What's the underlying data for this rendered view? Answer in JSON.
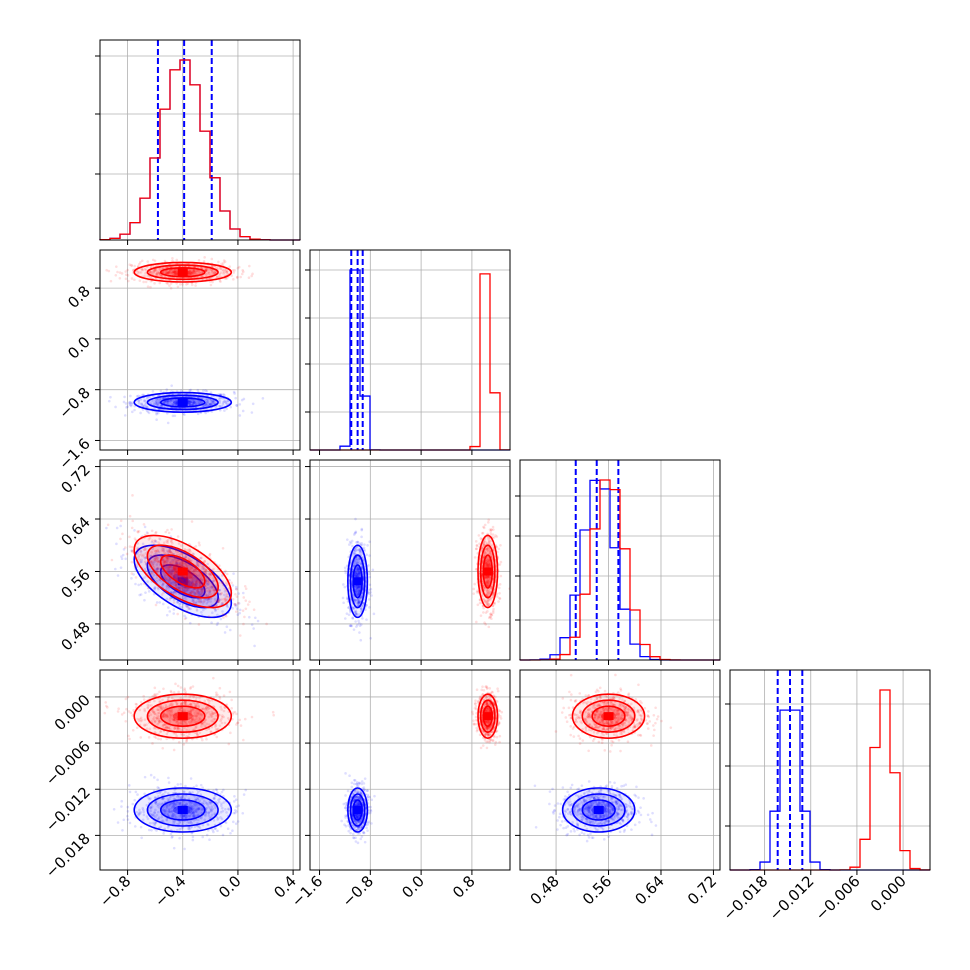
{
  "chart_data": {
    "type": "corner",
    "colors": {
      "blue": "#0000ff",
      "red": "#ff0000",
      "grid": "#b0b0b0"
    },
    "parameters": [
      {
        "index": 0,
        "range": [
          -1.0,
          0.45
        ],
        "ticks": [
          "−0.8",
          "−0.4",
          "0.0",
          "0.4"
        ],
        "tick_values": [
          -0.8,
          -0.4,
          0.0,
          0.4
        ]
      },
      {
        "index": 1,
        "range": [
          -1.75,
          1.4
        ],
        "ticks": [
          "−1.6",
          "−0.8",
          "0.0",
          "0.8"
        ],
        "tick_values": [
          -1.6,
          -0.8,
          0.0,
          0.8
        ]
      },
      {
        "index": 2,
        "range": [
          0.425,
          0.73
        ],
        "ticks": [
          "0.48",
          "0.56",
          "0.64",
          "0.72"
        ],
        "tick_values": [
          0.48,
          0.56,
          0.64,
          0.72
        ]
      },
      {
        "index": 3,
        "range": [
          -0.0225,
          0.0035
        ],
        "ticks": [
          "−0.018",
          "−0.012",
          "−0.006",
          "0.000"
        ],
        "tick_values": [
          -0.018,
          -0.012,
          -0.006,
          0.0
        ]
      }
    ],
    "series": [
      {
        "color": "blue",
        "means": [
          -0.4,
          -1.0,
          0.545,
          -0.0147
        ],
        "stds": [
          0.16,
          0.07,
          0.025,
          0.0013
        ],
        "quantiles": [
          [
            -0.58,
            -0.39,
            -0.19
          ],
          [
            -1.1,
            -1.0,
            -0.92
          ],
          [
            0.51,
            0.542,
            0.575
          ],
          [
            -0.0163,
            -0.0147,
            -0.0131
          ]
        ]
      },
      {
        "color": "red",
        "means": [
          -0.4,
          1.05,
          0.56,
          -0.0025
        ],
        "stds": [
          0.16,
          0.07,
          0.025,
          0.0013
        ]
      }
    ],
    "diag_y_ticks": [
      [
        0.33,
        0.63,
        0.92
      ],
      [
        0.19,
        0.43,
        0.66,
        0.9
      ],
      [
        0.2,
        0.42,
        0.62,
        0.82
      ],
      [
        0.22,
        0.52,
        0.83
      ]
    ],
    "grid": true
  }
}
